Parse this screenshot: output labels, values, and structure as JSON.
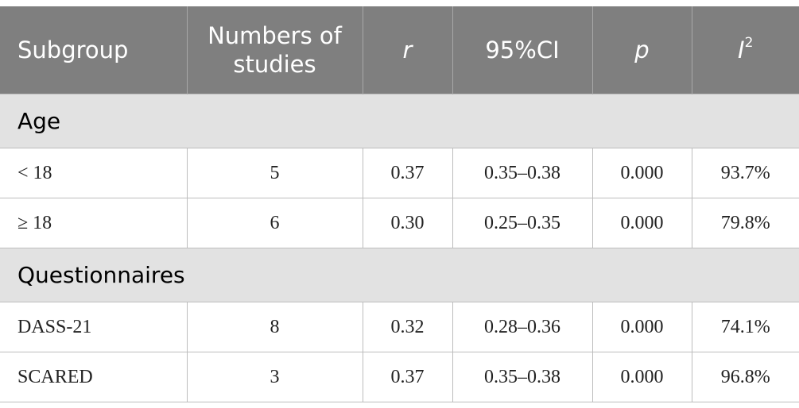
{
  "table": {
    "header": [
      "Subgroup",
      "Numbers of studies",
      "r",
      "95%CI",
      "p",
      {
        "text": "I",
        "sup": "2"
      }
    ],
    "sections": [
      {
        "title": "Age",
        "rows": [
          [
            "< 18",
            "5",
            "0.37",
            "0.35–0.38",
            "0.000",
            "93.7%"
          ],
          [
            "≥ 18",
            "6",
            "0.30",
            "0.25–0.35",
            "0.000",
            "79.8%"
          ]
        ]
      },
      {
        "title": "Questionnaires",
        "rows": [
          [
            "DASS-21",
            "8",
            "0.32",
            "0.28–0.36",
            "0.000",
            "74.1%"
          ],
          [
            "SCARED",
            "3",
            "0.37",
            "0.35–0.38",
            "0.000",
            "96.8%"
          ]
        ]
      }
    ]
  }
}
